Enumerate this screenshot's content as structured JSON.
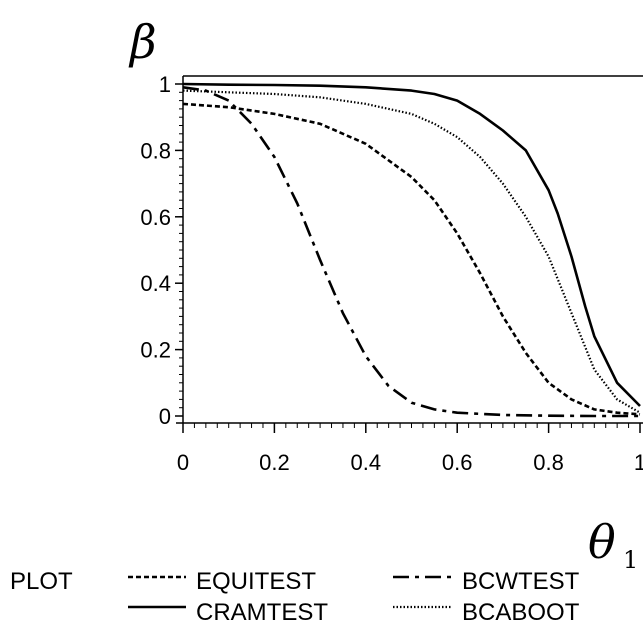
{
  "chart_data": {
    "type": "line",
    "title": "",
    "ylabel": "β",
    "xlabel_symbol": "θ",
    "xlabel_subscript": "1",
    "xlim": [
      0,
      1
    ],
    "ylim": [
      0,
      1
    ],
    "x_ticks": [
      "0",
      "0.2",
      "0.4",
      "0.6",
      "0.8",
      "1"
    ],
    "y_ticks": [
      "0",
      "0.2",
      "0.4",
      "0.6",
      "0.8",
      "1"
    ],
    "grid": false,
    "legend_position": "bottom",
    "legend_title": "PLOT",
    "series": [
      {
        "name": "EQUITEST",
        "style": "dotted-short",
        "x": [
          0,
          0.1,
          0.2,
          0.3,
          0.4,
          0.5,
          0.55,
          0.6,
          0.65,
          0.7,
          0.75,
          0.8,
          0.85,
          0.9,
          0.95,
          1.0
        ],
        "y": [
          0.94,
          0.93,
          0.91,
          0.88,
          0.82,
          0.72,
          0.65,
          0.55,
          0.43,
          0.3,
          0.19,
          0.1,
          0.05,
          0.02,
          0.01,
          0.005
        ]
      },
      {
        "name": "CRAMTEST",
        "style": "solid",
        "x": [
          0,
          0.1,
          0.2,
          0.3,
          0.4,
          0.5,
          0.55,
          0.6,
          0.65,
          0.7,
          0.75,
          0.8,
          0.82,
          0.85,
          0.88,
          0.9,
          0.95,
          1.0
        ],
        "y": [
          1.0,
          0.998,
          0.997,
          0.995,
          0.99,
          0.98,
          0.97,
          0.95,
          0.91,
          0.86,
          0.8,
          0.68,
          0.61,
          0.48,
          0.33,
          0.24,
          0.1,
          0.03
        ]
      },
      {
        "name": "BCWTEST",
        "style": "dash-dot",
        "x": [
          0,
          0.05,
          0.1,
          0.15,
          0.2,
          0.25,
          0.3,
          0.35,
          0.4,
          0.45,
          0.5,
          0.55,
          0.6,
          0.7,
          0.8,
          0.9,
          1.0
        ],
        "y": [
          0.99,
          0.98,
          0.95,
          0.88,
          0.78,
          0.64,
          0.47,
          0.31,
          0.18,
          0.09,
          0.04,
          0.02,
          0.01,
          0.003,
          0.001,
          0.0,
          0.0
        ]
      },
      {
        "name": "BCABOOT",
        "style": "dotted-fine",
        "x": [
          0,
          0.1,
          0.2,
          0.3,
          0.4,
          0.5,
          0.55,
          0.6,
          0.65,
          0.7,
          0.75,
          0.8,
          0.85,
          0.9,
          0.95,
          1.0
        ],
        "y": [
          0.98,
          0.975,
          0.97,
          0.96,
          0.94,
          0.91,
          0.88,
          0.84,
          0.78,
          0.7,
          0.6,
          0.48,
          0.31,
          0.14,
          0.05,
          0.01
        ]
      }
    ]
  }
}
